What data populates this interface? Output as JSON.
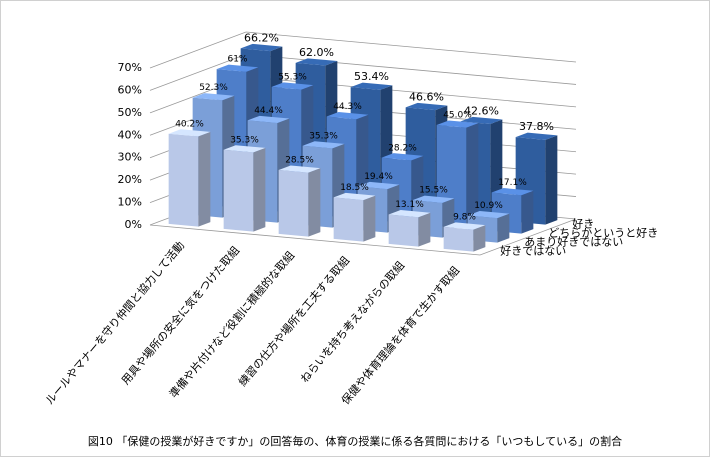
{
  "chart_data": {
    "type": "bar3d",
    "caption": "図10 「保健の授業が好きですか」の回答毎の、体育の授業に係る各質問における「いつもしている」の割合",
    "categories": [
      "ルールやマナーを守り仲間と協力して活動",
      "用具や場所の安全に気をつけた取組",
      "準備や片付けなど役割に積極的な取組",
      "練習の仕方や場所を工夫する取組",
      "ねらいを持ち考えながらの取組",
      "保健や体育理論を体育で生かす取組"
    ],
    "series": [
      {
        "name": "好きではない",
        "color": "#b9c8e8",
        "values": [
          40.2,
          35.3,
          28.5,
          18.5,
          13.1,
          9.8
        ],
        "value_labels": [
          "40.2%",
          "35.3%",
          "28.5%",
          "18.5%",
          "13.1%",
          "9.8%"
        ]
      },
      {
        "name": "あまり好きではない",
        "color": "#7b9fd8",
        "values": [
          52.3,
          44.4,
          35.3,
          19.4,
          15.5,
          10.9
        ],
        "value_labels": [
          "52.3%",
          "44.4%",
          "35.3%",
          "19.4%",
          "15.5%",
          "10.9%"
        ]
      },
      {
        "name": "どちらかというと好き",
        "color": "#4e7ec9",
        "values": [
          61,
          55.3,
          44.3,
          28.2,
          45.0,
          17.1
        ],
        "value_labels": [
          "61%",
          "55.3%",
          "44.3%",
          "28.2%",
          "45.0%",
          "17.1%"
        ]
      },
      {
        "name": "好き",
        "color": "#2f5d9e",
        "values": [
          66.2,
          62.0,
          53.4,
          46.6,
          42.6,
          37.8
        ],
        "value_labels": [
          "66.2%",
          "62.0%",
          "53.4%",
          "46.6%",
          "42.6%",
          "37.8%"
        ]
      }
    ],
    "ylim": [
      0,
      70
    ],
    "yticks": [
      {
        "value": 0,
        "label": "0%"
      },
      {
        "value": 10,
        "label": "10%"
      },
      {
        "value": 20,
        "label": "20%"
      },
      {
        "value": 30,
        "label": "30%"
      },
      {
        "value": 40,
        "label": "40%"
      },
      {
        "value": 50,
        "label": "50%"
      },
      {
        "value": 60,
        "label": "60%"
      },
      {
        "value": 70,
        "label": "70%"
      }
    ],
    "grid": true
  }
}
